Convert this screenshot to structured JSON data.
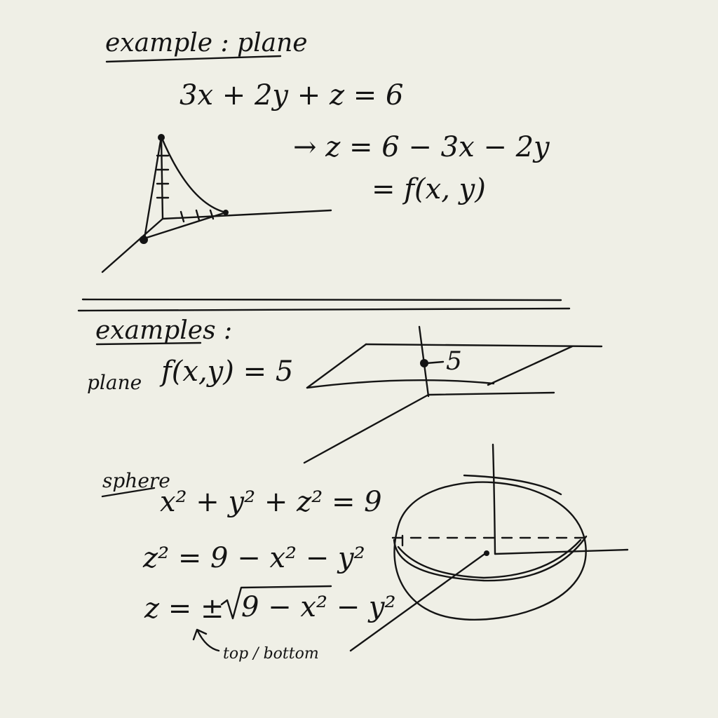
{
  "section1": {
    "heading": "example : plane",
    "equation": "3x + 2y + z = 6",
    "solved": "→ z = 6 − 3x − 2y",
    "function": "= f(x, y)"
  },
  "section2": {
    "heading": "examples :",
    "plane_label": "plane",
    "plane_equation": "f(x,y) = 5",
    "height_label": "5"
  },
  "section3": {
    "label": "sphere",
    "eq1": "x² + y² + z² = 9",
    "eq2": "z² = 9 − x² − y²",
    "eq3_prefix": "z = ±",
    "eq3_radicand": "9 − x² − y²",
    "note": "top / bottom"
  },
  "colors": {
    "paper": "#efefe6",
    "ink": "#141414"
  }
}
